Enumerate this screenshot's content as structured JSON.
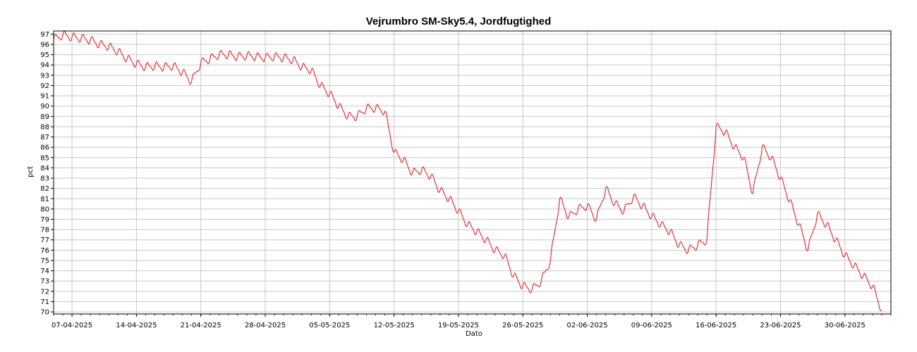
{
  "chart_data": {
    "type": "line",
    "title": "Vejrumbro SM-Sky5.4, Jordfugtighed",
    "xlabel": "Dato",
    "ylabel": "pct",
    "ylim": [
      69.8,
      97.3
    ],
    "y_ticks": [
      70,
      71,
      72,
      73,
      74,
      75,
      76,
      77,
      78,
      79,
      80,
      81,
      82,
      83,
      84,
      85,
      86,
      87,
      88,
      89,
      90,
      91,
      92,
      93,
      94,
      95,
      96,
      97
    ],
    "xlim": [
      "2025-04-05",
      "2025-07-05"
    ],
    "x_ticks": [
      "07-04-2025",
      "14-04-2025",
      "21-04-2025",
      "28-04-2025",
      "05-05-2025",
      "12-05-2025",
      "19-05-2025",
      "26-05-2025",
      "02-06-2025",
      "09-06-2025",
      "16-06-2025",
      "23-06-2025",
      "30-06-2025"
    ],
    "grid": true,
    "series_color": "#e8333a",
    "series": [
      {
        "points": [
          [
            "2025-04-05",
            96.5
          ],
          [
            "2025-04-06",
            96.9
          ],
          [
            "2025-04-07",
            96.7
          ],
          [
            "2025-04-08",
            96.6
          ],
          [
            "2025-04-09",
            96.4
          ],
          [
            "2025-04-10",
            96.0
          ],
          [
            "2025-04-11",
            95.8
          ],
          [
            "2025-04-12",
            95.3
          ],
          [
            "2025-04-13",
            94.6
          ],
          [
            "2025-04-14",
            94.1
          ],
          [
            "2025-04-15",
            93.8
          ],
          [
            "2025-04-16",
            93.9
          ],
          [
            "2025-04-17",
            93.8
          ],
          [
            "2025-04-18",
            93.9
          ],
          [
            "2025-04-19",
            93.3
          ],
          [
            "2025-04-20",
            92.4
          ],
          [
            "2025-04-21",
            94.2
          ],
          [
            "2025-04-22",
            94.6
          ],
          [
            "2025-04-23",
            95.0
          ],
          [
            "2025-04-24",
            95.0
          ],
          [
            "2025-04-25",
            94.8
          ],
          [
            "2025-04-26",
            94.9
          ],
          [
            "2025-04-27",
            94.8
          ],
          [
            "2025-04-28",
            94.7
          ],
          [
            "2025-04-29",
            94.8
          ],
          [
            "2025-04-30",
            94.7
          ],
          [
            "2025-05-01",
            94.5
          ],
          [
            "2025-05-02",
            93.8
          ],
          [
            "2025-05-03",
            93.5
          ],
          [
            "2025-05-04",
            92.0
          ],
          [
            "2025-05-05",
            91.2
          ],
          [
            "2025-05-06",
            90.0
          ],
          [
            "2025-05-07",
            89.0
          ],
          [
            "2025-05-08",
            89.0
          ],
          [
            "2025-05-09",
            89.8
          ],
          [
            "2025-05-10",
            89.8
          ],
          [
            "2025-05-11",
            89.5
          ],
          [
            "2025-05-12",
            85.5
          ],
          [
            "2025-05-13",
            84.8
          ],
          [
            "2025-05-14",
            83.5
          ],
          [
            "2025-05-15",
            83.8
          ],
          [
            "2025-05-16",
            83.2
          ],
          [
            "2025-05-17",
            81.8
          ],
          [
            "2025-05-18",
            81.0
          ],
          [
            "2025-05-19",
            79.8
          ],
          [
            "2025-05-20",
            78.5
          ],
          [
            "2025-05-21",
            77.8
          ],
          [
            "2025-05-22",
            77.0
          ],
          [
            "2025-05-23",
            76.0
          ],
          [
            "2025-05-24",
            75.5
          ],
          [
            "2025-05-25",
            73.5
          ],
          [
            "2025-05-26",
            72.5
          ],
          [
            "2025-05-27",
            72.2
          ],
          [
            "2025-05-28",
            73.0
          ],
          [
            "2025-05-29",
            75.0
          ],
          [
            "2025-05-30",
            81.0
          ],
          [
            "2025-05-31",
            79.2
          ],
          [
            "2025-06-01",
            80.0
          ],
          [
            "2025-06-02",
            80.3
          ],
          [
            "2025-06-03",
            79.0
          ],
          [
            "2025-06-04",
            82.0
          ],
          [
            "2025-06-05",
            80.5
          ],
          [
            "2025-06-06",
            79.8
          ],
          [
            "2025-06-07",
            81.2
          ],
          [
            "2025-06-08",
            80.3
          ],
          [
            "2025-06-09",
            79.3
          ],
          [
            "2025-06-10",
            78.5
          ],
          [
            "2025-06-11",
            77.8
          ],
          [
            "2025-06-12",
            76.5
          ],
          [
            "2025-06-13",
            76.0
          ],
          [
            "2025-06-14",
            76.5
          ],
          [
            "2025-06-15",
            77.0
          ],
          [
            "2025-06-16",
            88.0
          ],
          [
            "2025-06-17",
            87.5
          ],
          [
            "2025-06-18",
            86.0
          ],
          [
            "2025-06-19",
            85.0
          ],
          [
            "2025-06-20",
            81.5
          ],
          [
            "2025-06-21",
            86.0
          ],
          [
            "2025-06-22",
            85.0
          ],
          [
            "2025-06-23",
            83.0
          ],
          [
            "2025-06-24",
            80.8
          ],
          [
            "2025-06-25",
            78.5
          ],
          [
            "2025-06-26",
            76.0
          ],
          [
            "2025-06-27",
            79.5
          ],
          [
            "2025-06-28",
            78.5
          ],
          [
            "2025-06-29",
            77.0
          ],
          [
            "2025-06-30",
            75.5
          ],
          [
            "2025-07-01",
            74.5
          ],
          [
            "2025-07-02",
            73.5
          ],
          [
            "2025-07-03",
            72.5
          ],
          [
            "2025-07-04",
            70.2
          ]
        ]
      }
    ]
  }
}
